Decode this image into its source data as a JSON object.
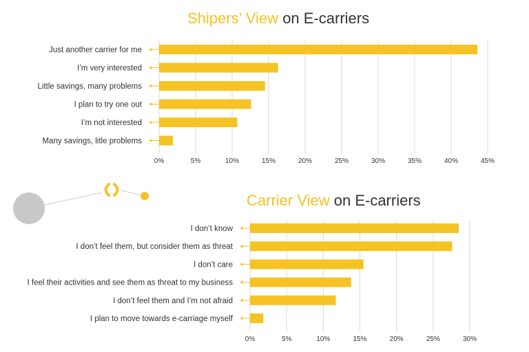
{
  "chart_data": [
    {
      "type": "bar",
      "title_accent": "Shipers’ View",
      "title_rest": " on E-carriers",
      "categories": [
        "Just another carrier for me",
        "I’m very interested",
        "Little savings, many problems",
        "I plan to try one out",
        "I’m not interested",
        "Many savings, litle problems"
      ],
      "values": [
        43.6,
        16.3,
        14.5,
        12.6,
        10.7,
        1.9
      ],
      "xlim": [
        0,
        45
      ],
      "ticks": [
        "0%",
        "5%",
        "10%",
        "15%",
        "20%",
        "25%",
        "30%",
        "35%",
        "40%",
        "45%"
      ],
      "orientation": "horizontal",
      "grid": true,
      "bar_color": "#f5c323"
    },
    {
      "type": "bar",
      "title_accent": "Carrier View",
      "title_rest": " on E-carriers",
      "categories": [
        "I don’t know",
        "I don’t feel them, but consider them as threat",
        "I don’t care",
        "I feel their activities and see them as threat to my business",
        "I don’t feel them and I’m not afraid",
        "I plan to move towards e-carriage myself"
      ],
      "values": [
        28.5,
        27.6,
        15.5,
        13.8,
        11.7,
        1.8
      ],
      "xlim": [
        0,
        30
      ],
      "ticks": [
        "0%",
        "5%",
        "10%",
        "15%",
        "20%",
        "25%",
        "30%"
      ],
      "orientation": "horizontal",
      "grid": true,
      "bar_color": "#f5c323"
    }
  ],
  "colors": {
    "accent": "#f5c323",
    "text": "#333333",
    "grid": "#d9d9d9",
    "circle": "#c8c8c8"
  },
  "decor": {
    "icon": "parentheses-icon"
  }
}
